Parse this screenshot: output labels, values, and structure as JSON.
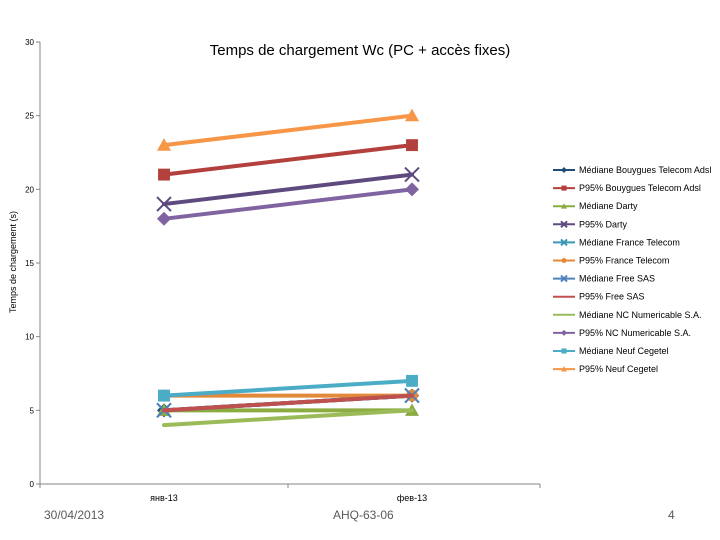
{
  "chart_data": {
    "type": "line",
    "title": "Temps de chargement Wc (PC + accès fixes)",
    "ylabel": "Temps de chargement (s)",
    "xlabel": "",
    "categories": [
      "янв-13",
      "фев-13"
    ],
    "ylim": [
      0,
      30
    ],
    "yticks": [
      0,
      5,
      10,
      15,
      20,
      25,
      30
    ],
    "grid": false,
    "legend_position": "right",
    "series": [
      {
        "name": "Médiane Bouygues Telecom Adsl",
        "values": [
          5,
          6
        ],
        "color": "#1f4e79",
        "marker": "diamond"
      },
      {
        "name": "P95% Bouygues Telecom Adsl",
        "values": [
          21,
          23
        ],
        "color": "#b3403d",
        "marker": "square"
      },
      {
        "name": "Médiane Darty",
        "values": [
          5,
          5
        ],
        "color": "#8cac42",
        "marker": "triangle"
      },
      {
        "name": "P95% Darty",
        "values": [
          19,
          21
        ],
        "color": "#5e4a7e",
        "marker": "x"
      },
      {
        "name": "Médiane France Telecom",
        "values": [
          5,
          6
        ],
        "color": "#3c97b4",
        "marker": "x"
      },
      {
        "name": "P95% France Telecom",
        "values": [
          6,
          6
        ],
        "color": "#e3893a",
        "marker": "circle"
      },
      {
        "name": "Médiane Free SAS",
        "values": [
          5,
          6
        ],
        "color": "#4f81bd",
        "marker": "x"
      },
      {
        "name": "P95% Free SAS",
        "values": [
          5,
          6
        ],
        "color": "#c0504d",
        "marker": "none"
      },
      {
        "name": "Médiane NC Numericable S.A.",
        "values": [
          4,
          5
        ],
        "color": "#9bbb59",
        "marker": "none"
      },
      {
        "name": "P95% NC Numericable S.A.",
        "values": [
          18,
          20
        ],
        "color": "#8064a2",
        "marker": "diamond"
      },
      {
        "name": "Médiane Neuf Cegetel",
        "values": [
          6,
          7
        ],
        "color": "#4bacc6",
        "marker": "square"
      },
      {
        "name": "P95% Neuf Cegetel",
        "values": [
          23,
          25
        ],
        "color": "#f79646",
        "marker": "triangle"
      }
    ]
  },
  "footer": {
    "date": "30/04/2013",
    "code": "AHQ-63-06",
    "page": "4"
  }
}
